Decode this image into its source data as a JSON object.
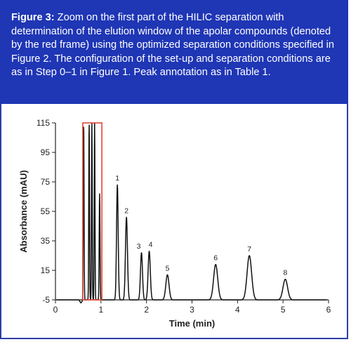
{
  "caption": {
    "label": "Figure 3:",
    "text": " Zoom on the first part of the HILIC separation with determination of the elution window of the apolar compounds (denoted by the red frame) using the optimized separation conditions specified in Figure 2. The configuration of the set-up and separation conditions are as in Step 0–1 in Figure 1. Peak annotation as in Table 1."
  },
  "colors": {
    "caption_bg": "#1f36b5",
    "frame": "#e0463a",
    "trace": "#111111"
  },
  "chart_data": {
    "type": "line",
    "xlabel": "Time (min)",
    "ylabel": "Absorbance (mAU)",
    "xlim": [
      0,
      6
    ],
    "ylim": [
      -5,
      115
    ],
    "xticks": [
      0,
      1,
      2,
      3,
      4,
      5,
      6
    ],
    "yticks": [
      -5,
      15,
      35,
      55,
      75,
      95,
      115
    ],
    "grid": false,
    "baseline": -5,
    "series": [
      {
        "peaks": [
          {
            "label": "",
            "t": 0.62,
            "h": 115,
            "w": 0.008
          },
          {
            "label": "",
            "t": 0.74,
            "h": 115,
            "w": 0.008
          },
          {
            "label": "",
            "t": 0.8,
            "h": 115,
            "w": 0.008
          },
          {
            "label": "",
            "t": 0.86,
            "h": 115,
            "w": 0.008
          },
          {
            "label": "",
            "t": 0.97,
            "h": 67,
            "w": 0.009
          },
          {
            "label": "1",
            "t": 1.36,
            "h": 73,
            "w": 0.018
          },
          {
            "label": "2",
            "t": 1.56,
            "h": 51,
            "w": 0.022
          },
          {
            "label": "3",
            "t": 1.89,
            "h": 27,
            "w": 0.022
          },
          {
            "label": "4",
            "t": 2.06,
            "h": 28,
            "w": 0.024
          },
          {
            "label": "5",
            "t": 2.46,
            "h": 12,
            "w": 0.035
          },
          {
            "label": "6",
            "t": 3.52,
            "h": 19,
            "w": 0.045
          },
          {
            "label": "7",
            "t": 4.26,
            "h": 25,
            "w": 0.05
          },
          {
            "label": "8",
            "t": 5.05,
            "h": 9,
            "w": 0.05
          }
        ]
      }
    ],
    "elution_window": {
      "start": 0.6,
      "end": 1.02,
      "ymin": -5,
      "ymax": 115
    }
  }
}
